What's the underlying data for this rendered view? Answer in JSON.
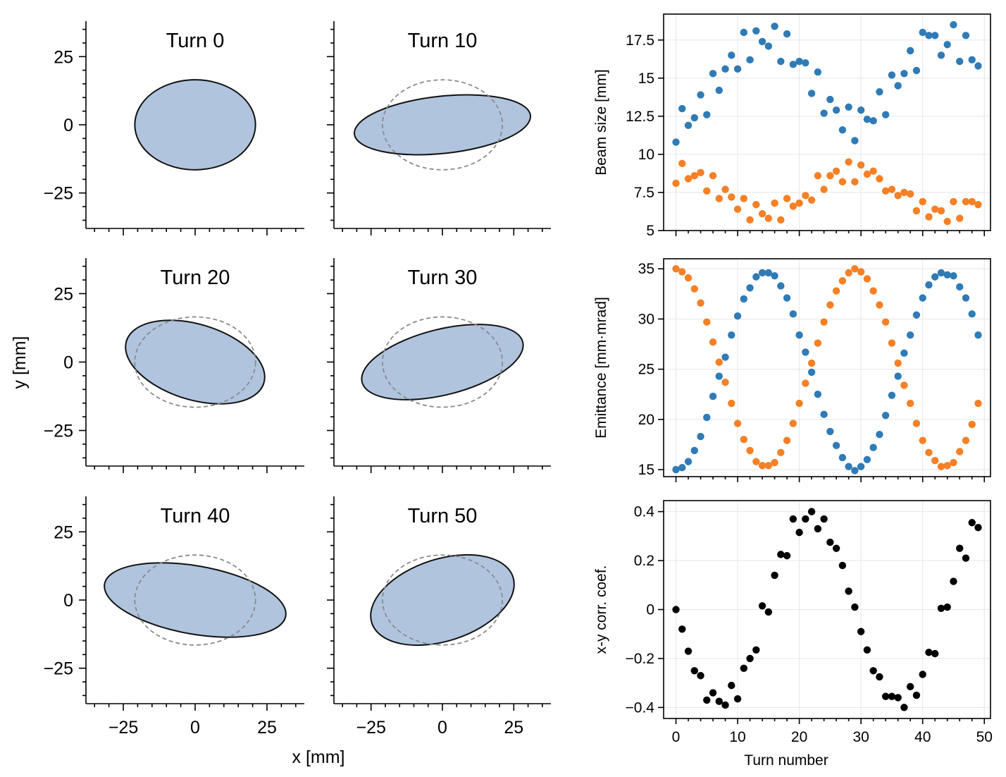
{
  "figure": {
    "colors": {
      "blue": "#2f7bb6",
      "orange": "#f58025",
      "black": "#000000",
      "fill": "#b0c4de",
      "edge": "#111111",
      "ref": "#8a8a8a"
    },
    "shared_xlabel": "x [mm]",
    "shared_ylabel": "y [mm]",
    "phase_tick_labels": [
      "−25",
      "0",
      "25"
    ]
  },
  "chart_data": [
    {
      "type": "ellipse-snapshots",
      "xlim": [
        -38,
        38
      ],
      "ylim": [
        -38,
        38
      ],
      "xticks": [
        -25,
        0,
        25
      ],
      "yticks": [
        -25,
        0,
        25
      ],
      "xlabel": "x [mm]",
      "ylabel": "y [mm]",
      "reference_circle": {
        "rx": 21,
        "ry": 16.5
      },
      "panels": [
        {
          "title": "Turn 0",
          "turn": 0,
          "semi_major": 21,
          "semi_minor": 16.5,
          "angle_deg": 0,
          "show_ref": false
        },
        {
          "title": "Turn 10",
          "turn": 10,
          "semi_major": 31,
          "semi_minor": 10.5,
          "angle_deg": 6,
          "show_ref": true
        },
        {
          "title": "Turn 20",
          "turn": 20,
          "semi_major": 25,
          "semi_minor": 13.8,
          "angle_deg": -17,
          "show_ref": true
        },
        {
          "title": "Turn 30",
          "turn": 30,
          "semi_major": 29,
          "semi_minor": 12,
          "angle_deg": 14,
          "show_ref": true
        },
        {
          "title": "Turn 40",
          "turn": 40,
          "semi_major": 32,
          "semi_minor": 12.5,
          "angle_deg": -10,
          "show_ref": true
        },
        {
          "title": "Turn 50",
          "turn": 50,
          "semi_major": 26,
          "semi_minor": 15,
          "angle_deg": 18,
          "show_ref": true
        }
      ]
    },
    {
      "type": "scatter",
      "ylabel": "Beam size [mm]",
      "xlim": [
        -2,
        51
      ],
      "ylim": [
        5,
        19.2
      ],
      "xticks": [
        0,
        10,
        20,
        30,
        40,
        50
      ],
      "yticks": [
        5,
        7.5,
        10,
        12.5,
        15,
        17.5
      ],
      "ytick_labels": [
        "5",
        "7.5",
        "10",
        "12.5",
        "15",
        "17.5"
      ],
      "series": [
        {
          "color": "#2f7bb6",
          "x": [
            0,
            1,
            2,
            3,
            4,
            5,
            6,
            7,
            8,
            9,
            10,
            11,
            12,
            13,
            14,
            15,
            16,
            17,
            18,
            19,
            20,
            21,
            22,
            23,
            24,
            25,
            26,
            27,
            28,
            29,
            30,
            31,
            32,
            33,
            34,
            35,
            36,
            37,
            38,
            39,
            40,
            41,
            42,
            43,
            44,
            45,
            46,
            47,
            48,
            49
          ],
          "y": [
            10.8,
            13.0,
            11.9,
            12.4,
            13.9,
            12.6,
            15.3,
            14.2,
            15.6,
            16.5,
            15.6,
            18.0,
            16.2,
            18.1,
            17.4,
            17.1,
            18.4,
            16.1,
            17.9,
            15.9,
            16.1,
            16.0,
            14.0,
            15.4,
            12.7,
            13.6,
            12.9,
            11.6,
            13.1,
            10.9,
            12.9,
            12.3,
            12.2,
            14.1,
            12.6,
            15.2,
            14.5,
            15.3,
            16.8,
            15.5,
            18.0,
            17.8,
            17.8,
            16.5,
            17.2,
            18.5,
            16.1,
            17.8,
            16.2,
            15.8
          ]
        },
        {
          "color": "#f58025",
          "x": [
            0,
            1,
            2,
            3,
            4,
            5,
            6,
            7,
            8,
            9,
            10,
            11,
            12,
            13,
            14,
            15,
            16,
            17,
            18,
            19,
            20,
            21,
            22,
            23,
            24,
            25,
            26,
            27,
            28,
            29,
            30,
            31,
            32,
            33,
            34,
            35,
            36,
            37,
            38,
            39,
            40,
            41,
            42,
            43,
            44,
            45,
            46,
            47,
            48,
            49
          ],
          "y": [
            8.1,
            9.4,
            8.4,
            8.6,
            8.8,
            7.6,
            8.6,
            7.1,
            7.7,
            7.2,
            6.4,
            7.1,
            5.7,
            6.7,
            6.1,
            5.8,
            6.8,
            5.7,
            7.1,
            6.6,
            6.8,
            7.3,
            7.0,
            8.6,
            7.7,
            8.6,
            8.9,
            8.2,
            9.5,
            8.2,
            9.3,
            8.7,
            8.9,
            8.4,
            7.6,
            7.7,
            7.3,
            7.5,
            7.4,
            6.3,
            6.9,
            5.9,
            6.4,
            6.3,
            5.6,
            6.9,
            5.8,
            6.9,
            6.9,
            6.7
          ]
        }
      ]
    },
    {
      "type": "scatter",
      "ylabel": "Emittance [mm·mrad]",
      "xlim": [
        -2,
        51
      ],
      "ylim": [
        14.3,
        36
      ],
      "xticks": [
        0,
        10,
        20,
        30,
        40,
        50
      ],
      "yticks": [
        15,
        20,
        25,
        30,
        35
      ],
      "ytick_labels": [
        "15",
        "20",
        "25",
        "30",
        "35"
      ],
      "series": [
        {
          "color": "#2f7bb6",
          "x": [
            0,
            1,
            2,
            3,
            4,
            5,
            6,
            7,
            8,
            9,
            10,
            11,
            12,
            13,
            14,
            15,
            16,
            17,
            18,
            19,
            20,
            21,
            22,
            23,
            24,
            25,
            26,
            27,
            28,
            29,
            30,
            31,
            32,
            33,
            34,
            35,
            36,
            37,
            38,
            39,
            40,
            41,
            42,
            43,
            44,
            45,
            46,
            47,
            48,
            49
          ],
          "y": [
            15.0,
            15.2,
            15.8,
            16.9,
            18.3,
            20.2,
            22.3,
            24.3,
            26.2,
            28.4,
            30.3,
            32.0,
            33.1,
            34.2,
            34.6,
            34.6,
            34.3,
            33.3,
            32.1,
            30.5,
            28.4,
            26.7,
            24.7,
            22.5,
            20.5,
            18.8,
            17.4,
            16.2,
            15.3,
            14.9,
            15.3,
            16.0,
            17.2,
            18.5,
            20.4,
            22.4,
            24.3,
            26.6,
            28.4,
            30.4,
            32.1,
            33.4,
            34.2,
            34.6,
            34.4,
            34.3,
            33.2,
            32.1,
            30.5,
            28.4
          ]
        },
        {
          "color": "#f58025",
          "x": [
            0,
            1,
            2,
            3,
            4,
            5,
            6,
            7,
            8,
            9,
            10,
            11,
            12,
            13,
            14,
            15,
            16,
            17,
            18,
            19,
            20,
            21,
            22,
            23,
            24,
            25,
            26,
            27,
            28,
            29,
            30,
            31,
            32,
            33,
            34,
            35,
            36,
            37,
            38,
            39,
            40,
            41,
            42,
            43,
            44,
            45,
            46,
            47,
            48,
            49
          ],
          "y": [
            35.0,
            34.7,
            34.1,
            33.0,
            31.6,
            29.7,
            27.7,
            25.7,
            23.7,
            21.6,
            19.6,
            18.0,
            16.9,
            15.8,
            15.4,
            15.4,
            15.7,
            16.7,
            17.9,
            19.6,
            21.6,
            23.6,
            25.6,
            27.6,
            29.7,
            31.4,
            32.8,
            33.8,
            34.6,
            35.0,
            34.7,
            34.0,
            32.8,
            31.4,
            29.7,
            27.6,
            25.6,
            23.4,
            21.6,
            19.6,
            17.9,
            16.7,
            15.9,
            15.3,
            15.4,
            15.7,
            16.8,
            17.9,
            19.5,
            21.6
          ]
        }
      ]
    },
    {
      "type": "scatter",
      "ylabel": "x-y corr. coef.",
      "xlabel": "Turn number",
      "xlim": [
        -2,
        51
      ],
      "ylim": [
        -0.445,
        0.445
      ],
      "xticks": [
        0,
        10,
        20,
        30,
        40,
        50
      ],
      "xtick_labels": [
        "0",
        "10",
        "20",
        "30",
        "40",
        "50"
      ],
      "yticks": [
        -0.4,
        -0.2,
        0,
        0.2,
        0.4
      ],
      "ytick_labels": [
        "−0.4",
        "−0.2",
        "0",
        "0.2",
        "0.4"
      ],
      "series": [
        {
          "color": "#000000",
          "x": [
            0,
            1,
            2,
            3,
            4,
            5,
            6,
            7,
            8,
            9,
            10,
            11,
            12,
            13,
            14,
            15,
            16,
            17,
            18,
            19,
            20,
            21,
            22,
            23,
            24,
            25,
            26,
            27,
            28,
            29,
            30,
            31,
            32,
            33,
            34,
            35,
            36,
            37,
            38,
            39,
            40,
            41,
            42,
            43,
            44,
            45,
            46,
            47,
            48,
            49
          ],
          "y": [
            0.0,
            -0.08,
            -0.17,
            -0.25,
            -0.27,
            -0.37,
            -0.34,
            -0.375,
            -0.39,
            -0.31,
            -0.365,
            -0.24,
            -0.2,
            -0.165,
            0.015,
            -0.01,
            0.14,
            0.225,
            0.22,
            0.37,
            0.315,
            0.37,
            0.4,
            0.33,
            0.37,
            0.275,
            0.25,
            0.18,
            0.075,
            0.01,
            -0.09,
            -0.165,
            -0.25,
            -0.275,
            -0.355,
            -0.355,
            -0.36,
            -0.4,
            -0.315,
            -0.35,
            -0.265,
            -0.175,
            -0.18,
            0.005,
            0.01,
            0.115,
            0.25,
            0.21,
            0.355,
            0.335
          ]
        }
      ]
    }
  ]
}
